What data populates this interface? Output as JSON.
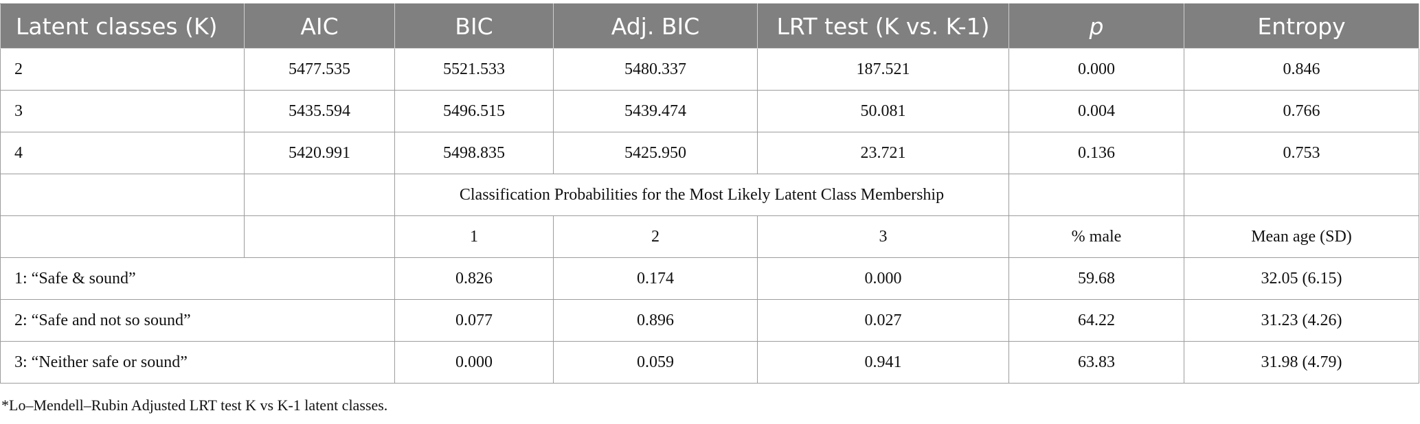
{
  "table": {
    "headers": [
      "Latent classes (K)",
      "AIC",
      "BIC",
      "Adj. BIC",
      "LRT test (K vs. K-1)",
      "p",
      "Entropy"
    ],
    "fit_rows": [
      [
        "2",
        "5477.535",
        "5521.533",
        "5480.337",
        "187.521",
        "0.000",
        "0.846"
      ],
      [
        "3",
        "5435.594",
        "5496.515",
        "5439.474",
        "50.081",
        "0.004",
        "0.766"
      ],
      [
        "4",
        "5420.991",
        "5498.835",
        "5425.950",
        "23.721",
        "0.136",
        "0.753"
      ]
    ],
    "classification_title": "Classification Probabilities for the Most Likely Latent Class Membership",
    "sub_header": [
      "1",
      "2",
      "3",
      "% male",
      "Mean age (SD)"
    ],
    "class_rows": [
      [
        "1: “Safe & sound”",
        "0.826",
        "0.174",
        "0.000",
        "59.68",
        "32.05 (6.15)"
      ],
      [
        "2: “Safe and not so sound”",
        "0.077",
        "0.896",
        "0.027",
        "64.22",
        "31.23 (4.26)"
      ],
      [
        "3: “Neither safe or sound”",
        "0.000",
        "0.059",
        "0.941",
        "63.83",
        "31.98 (4.79)"
      ]
    ]
  },
  "footnote": "*Lo–Mendell–Rubin Adjusted LRT test K vs K-1 latent classes."
}
